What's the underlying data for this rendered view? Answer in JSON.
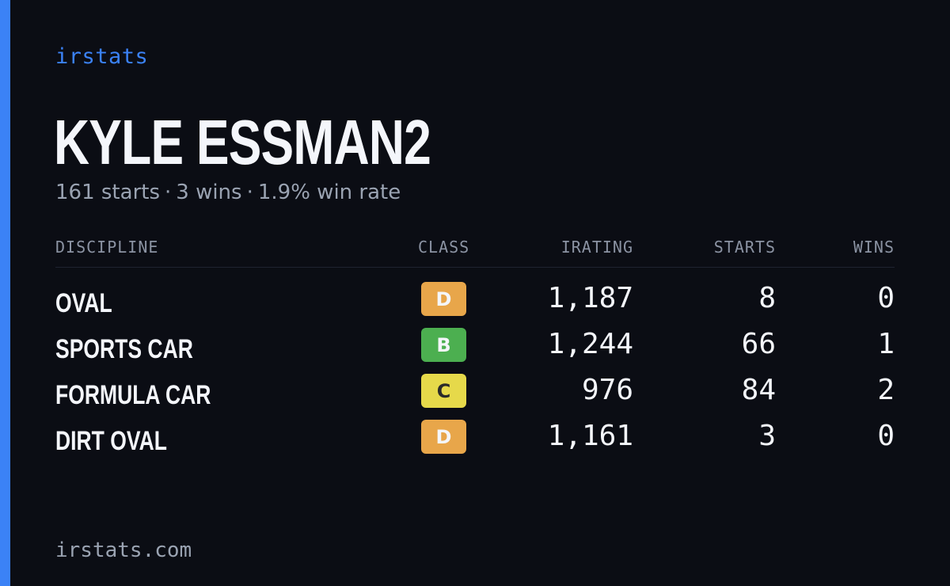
{
  "brand": "irstats",
  "driver": {
    "name": "KYLE ESSMAN2",
    "summary": {
      "starts": "161 starts",
      "wins": "3 wins",
      "win_rate": "1.9% win rate",
      "separator": "·"
    }
  },
  "table": {
    "headers": {
      "discipline": "DISCIPLINE",
      "class": "CLASS",
      "irating": "IRATING",
      "starts": "STARTS",
      "wins": "WINS"
    },
    "rows": [
      {
        "discipline": "OVAL",
        "class": "D",
        "class_color": "#e8a64a",
        "irating": "1,187",
        "starts": "8",
        "wins": "0"
      },
      {
        "discipline": "SPORTS CAR",
        "class": "B",
        "class_color": "#4caf50",
        "irating": "1,244",
        "starts": "66",
        "wins": "1"
      },
      {
        "discipline": "FORMULA CAR",
        "class": "C",
        "class_color": "#e6d94a",
        "irating": "976",
        "starts": "84",
        "wins": "2"
      },
      {
        "discipline": "DIRT OVAL",
        "class": "D",
        "class_color": "#e8a64a",
        "irating": "1,161",
        "starts": "3",
        "wins": "0"
      }
    ]
  },
  "footer": "irstats.com",
  "colors": {
    "accent": "#3b82f6",
    "background": "#0b0d14"
  }
}
